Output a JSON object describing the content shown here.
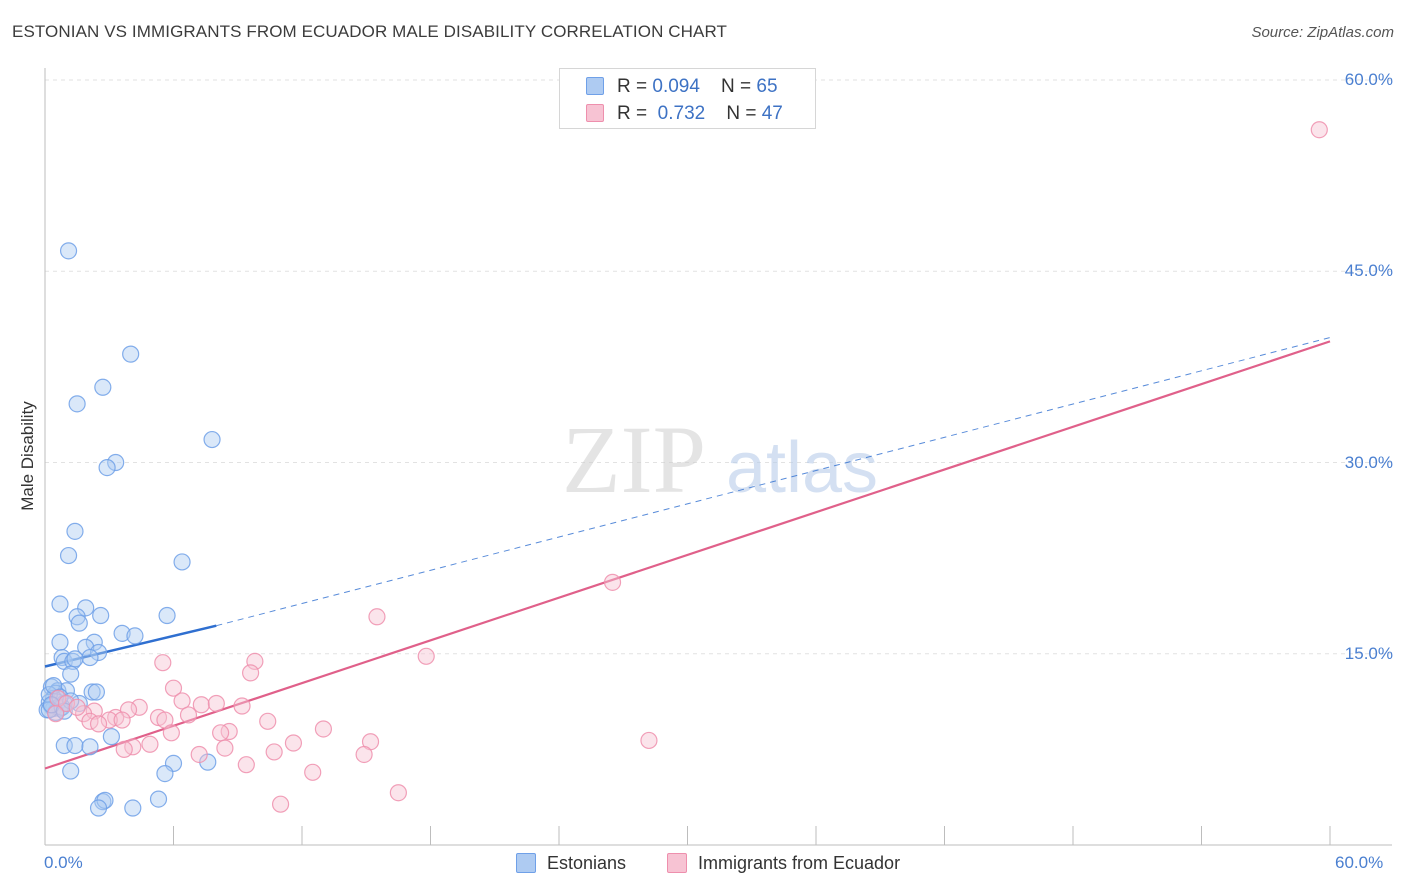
{
  "chart_data": {
    "type": "scatter",
    "title": "ESTONIAN VS IMMIGRANTS FROM ECUADOR MALE DISABILITY CORRELATION CHART",
    "source": "Source: ZipAtlas.com",
    "xlabel": "",
    "ylabel": "Male Disability",
    "xlim": [
      0,
      60
    ],
    "ylim": [
      0,
      60
    ],
    "x_tick_labels": [
      "0.0%",
      "60.0%"
    ],
    "y_ticks": [
      15,
      30,
      45,
      60
    ],
    "y_tick_labels": [
      "15.0%",
      "30.0%",
      "45.0%",
      "60.0%"
    ],
    "grid": true,
    "watermark": "ZIPatlas",
    "legend_top": [
      {
        "r_label": "R = ",
        "r_value": "0.094",
        "n_label": "N = ",
        "n_value": "65"
      },
      {
        "r_label": "R = ",
        "r_value": "0.732",
        "n_label": "N = ",
        "n_value": "47"
      }
    ],
    "series": [
      {
        "name": "Estonians",
        "color": "#6fa0e8",
        "fill": "#aecbf2",
        "line_color": "#2f6fd0",
        "trend": {
          "x0": 0,
          "y0": 14.0,
          "x1": 8,
          "y1": 17.2,
          "dashed_to_x": 60,
          "dashed_to_y": 39.8
        },
        "points": [
          [
            1.1,
            46.6
          ],
          [
            4.0,
            38.5
          ],
          [
            2.7,
            35.9
          ],
          [
            1.5,
            34.6
          ],
          [
            7.8,
            31.8
          ],
          [
            3.3,
            30.0
          ],
          [
            2.9,
            29.6
          ],
          [
            1.4,
            24.6
          ],
          [
            1.1,
            22.7
          ],
          [
            6.4,
            22.2
          ],
          [
            0.7,
            18.9
          ],
          [
            1.9,
            18.6
          ],
          [
            2.6,
            18.0
          ],
          [
            1.5,
            17.9
          ],
          [
            5.7,
            18.0
          ],
          [
            1.6,
            17.4
          ],
          [
            3.6,
            16.6
          ],
          [
            4.2,
            16.4
          ],
          [
            0.7,
            15.9
          ],
          [
            2.3,
            15.9
          ],
          [
            1.9,
            15.5
          ],
          [
            2.5,
            15.1
          ],
          [
            0.8,
            14.7
          ],
          [
            2.1,
            14.7
          ],
          [
            0.9,
            14.4
          ],
          [
            1.3,
            14.4
          ],
          [
            1.4,
            14.6
          ],
          [
            1.2,
            13.4
          ],
          [
            0.3,
            12.4
          ],
          [
            0.6,
            12.1
          ],
          [
            1.0,
            12.1
          ],
          [
            0.5,
            11.9
          ],
          [
            2.2,
            12.0
          ],
          [
            2.4,
            12.0
          ],
          [
            0.4,
            11.5
          ],
          [
            0.2,
            11.2
          ],
          [
            0.6,
            11.2
          ],
          [
            0.9,
            11.1
          ],
          [
            0.3,
            10.9
          ],
          [
            0.4,
            10.7
          ],
          [
            0.7,
            10.7
          ],
          [
            0.1,
            10.6
          ],
          [
            0.5,
            10.4
          ],
          [
            0.2,
            11.8
          ],
          [
            1.6,
            11.1
          ],
          [
            0.2,
            10.6
          ],
          [
            0.8,
            10.8
          ],
          [
            3.1,
            8.5
          ],
          [
            0.9,
            7.8
          ],
          [
            1.4,
            7.8
          ],
          [
            2.1,
            7.7
          ],
          [
            7.6,
            6.5
          ],
          [
            6.0,
            6.4
          ],
          [
            5.6,
            5.6
          ],
          [
            1.2,
            5.8
          ],
          [
            2.7,
            3.4
          ],
          [
            2.8,
            3.5
          ],
          [
            5.3,
            3.6
          ],
          [
            2.5,
            2.9
          ],
          [
            4.1,
            2.9
          ],
          [
            0.4,
            12.5
          ],
          [
            0.7,
            11.6
          ],
          [
            1.2,
            11.3
          ],
          [
            0.3,
            11.0
          ],
          [
            0.9,
            10.5
          ]
        ]
      },
      {
        "name": "Immigrants from Ecuador",
        "color": "#ee8fad",
        "fill": "#f7c3d3",
        "line_color": "#e0608a",
        "trend": {
          "x0": 0,
          "y0": 6.0,
          "x1": 60,
          "y1": 39.5
        },
        "points": [
          [
            59.5,
            56.1
          ],
          [
            26.5,
            20.6
          ],
          [
            15.5,
            17.9
          ],
          [
            17.8,
            14.8
          ],
          [
            9.8,
            14.4
          ],
          [
            5.5,
            14.3
          ],
          [
            9.6,
            13.5
          ],
          [
            6.0,
            12.3
          ],
          [
            6.4,
            11.3
          ],
          [
            7.3,
            11.0
          ],
          [
            8.0,
            11.1
          ],
          [
            9.2,
            10.9
          ],
          [
            4.4,
            10.8
          ],
          [
            3.9,
            10.6
          ],
          [
            2.3,
            10.5
          ],
          [
            1.8,
            10.3
          ],
          [
            3.3,
            10.0
          ],
          [
            5.3,
            10.0
          ],
          [
            5.6,
            9.8
          ],
          [
            3.0,
            9.8
          ],
          [
            2.1,
            9.7
          ],
          [
            2.5,
            9.5
          ],
          [
            3.6,
            9.8
          ],
          [
            10.4,
            9.7
          ],
          [
            6.7,
            10.2
          ],
          [
            13.0,
            9.1
          ],
          [
            8.6,
            8.9
          ],
          [
            5.9,
            8.8
          ],
          [
            8.2,
            8.8
          ],
          [
            0.6,
            11.5
          ],
          [
            1.0,
            11.1
          ],
          [
            4.1,
            7.7
          ],
          [
            11.6,
            8.0
          ],
          [
            4.9,
            7.9
          ],
          [
            8.4,
            7.6
          ],
          [
            7.2,
            7.1
          ],
          [
            10.7,
            7.3
          ],
          [
            15.2,
            8.1
          ],
          [
            28.2,
            8.2
          ],
          [
            14.9,
            7.1
          ],
          [
            9.4,
            6.3
          ],
          [
            12.5,
            5.7
          ],
          [
            16.5,
            4.1
          ],
          [
            11.0,
            3.2
          ],
          [
            1.5,
            10.8
          ],
          [
            0.5,
            10.3
          ],
          [
            3.7,
            7.5
          ]
        ]
      }
    ]
  }
}
